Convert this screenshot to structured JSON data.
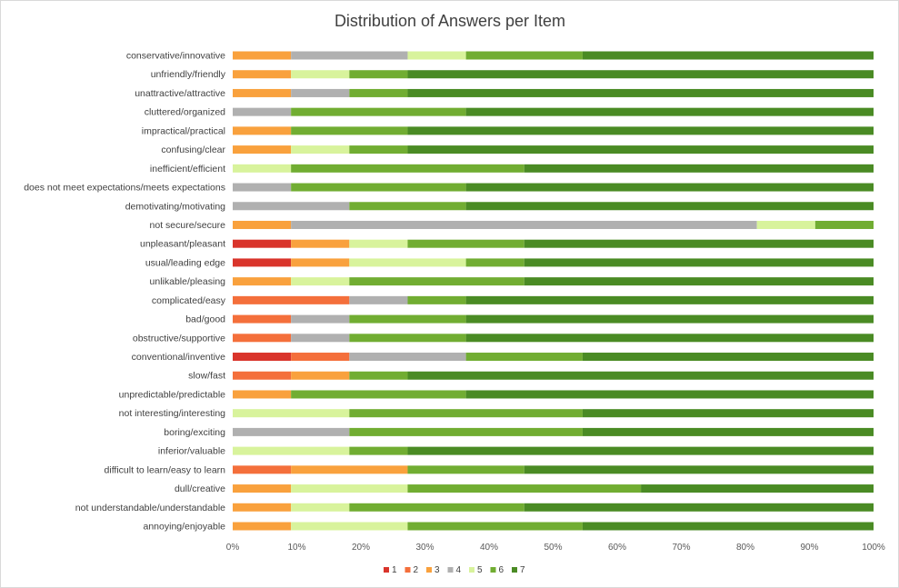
{
  "chart_data": {
    "type": "bar",
    "orientation": "horizontal",
    "stacked": "100%",
    "title": "Distribution of Answers per Item",
    "xlabel": "",
    "ylabel": "",
    "xlim": [
      0,
      100
    ],
    "x_ticks": [
      "0%",
      "10%",
      "20%",
      "30%",
      "40%",
      "50%",
      "60%",
      "70%",
      "80%",
      "90%",
      "100%"
    ],
    "grid": false,
    "legend_position": "bottom",
    "categories": [
      "conservative/innovative",
      "unfriendly/friendly",
      "unattractive/attractive",
      "cluttered/organized",
      "impractical/practical",
      "confusing/clear",
      "inefficient/efficient",
      "does not meet expectations/meets expectations",
      "demotivating/motivating",
      "not secure/secure",
      "unpleasant/pleasant",
      "usual/leading edge",
      "unlikable/pleasing",
      "complicated/easy",
      "bad/good",
      "obstructive/supportive",
      "conventional/inventive",
      "slow/fast",
      "unpredictable/predictable",
      "not interesting/interesting",
      "boring/exciting",
      "inferior/valuable",
      "difficult to learn/easy to learn",
      "dull/creative",
      "not understandable/understandable",
      "annoying/enjoyable"
    ],
    "series": [
      {
        "name": "1",
        "color": "#d9342b",
        "values": [
          0,
          0,
          0,
          0,
          0,
          0,
          0,
          0,
          0,
          0,
          9.1,
          9.1,
          0,
          0,
          0,
          0,
          9.1,
          0,
          0,
          0,
          0,
          0,
          0,
          0,
          0,
          0
        ]
      },
      {
        "name": "2",
        "color": "#f46f3b",
        "values": [
          0,
          0,
          0,
          0,
          0,
          0,
          0,
          0,
          0,
          0,
          0,
          0,
          0,
          18.2,
          9.1,
          9.1,
          9.1,
          9.1,
          0,
          0,
          0,
          0,
          9.1,
          0,
          0,
          0
        ]
      },
      {
        "name": "3",
        "color": "#f9a13d",
        "values": [
          9.1,
          9.1,
          9.1,
          0,
          9.1,
          9.1,
          0,
          0,
          0,
          9.1,
          9.1,
          9.1,
          9.1,
          0,
          0,
          0,
          0,
          9.1,
          9.1,
          0,
          0,
          0,
          18.2,
          9.1,
          9.1,
          9.1
        ]
      },
      {
        "name": "4",
        "color": "#b0b0b0",
        "values": [
          18.2,
          0,
          9.1,
          9.1,
          0,
          0,
          0,
          9.1,
          18.2,
          72.7,
          0,
          0,
          0,
          9.1,
          9.1,
          9.1,
          18.2,
          0,
          0,
          0,
          18.2,
          0,
          0,
          0,
          0,
          0
        ]
      },
      {
        "name": "5",
        "color": "#d8f39c",
        "values": [
          9.1,
          9.1,
          0,
          0,
          0,
          9.1,
          9.1,
          0,
          0,
          9.1,
          9.1,
          18.2,
          9.1,
          0,
          0,
          0,
          0,
          0,
          0,
          18.2,
          0,
          18.2,
          0,
          18.2,
          9.1,
          18.2
        ]
      },
      {
        "name": "6",
        "color": "#71ad32",
        "values": [
          18.2,
          9.1,
          9.1,
          27.3,
          18.2,
          9.1,
          36.4,
          27.3,
          18.2,
          9.1,
          18.2,
          9.1,
          27.3,
          9.1,
          18.2,
          18.2,
          18.2,
          9.1,
          27.3,
          36.4,
          36.4,
          9.1,
          18.2,
          36.4,
          27.3,
          27.3
        ]
      },
      {
        "name": "7",
        "color": "#4a8b24",
        "values": [
          45.4,
          72.7,
          72.7,
          63.6,
          72.7,
          72.7,
          54.5,
          63.6,
          63.6,
          0,
          54.5,
          54.5,
          54.5,
          63.6,
          63.6,
          63.6,
          45.4,
          72.7,
          63.6,
          45.4,
          45.4,
          72.7,
          54.5,
          36.3,
          54.5,
          45.4
        ]
      }
    ]
  }
}
